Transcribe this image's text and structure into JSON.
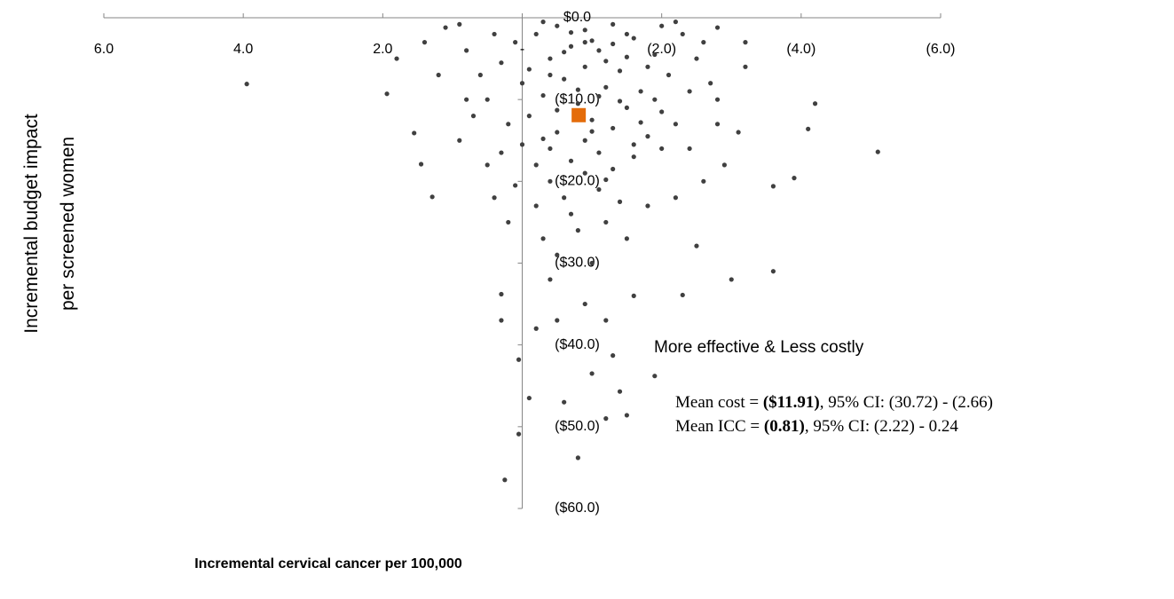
{
  "chart_data": {
    "type": "scatter",
    "x_label": "Incremental cervical cancer per 100,000",
    "y_label": [
      "Incremental budget impact",
      "per screened women"
    ],
    "xlim": [
      6,
      -6
    ],
    "xticks": [
      {
        "value": 6,
        "label": "6.0"
      },
      {
        "value": 4,
        "label": "4.0"
      },
      {
        "value": 2,
        "label": "2.0"
      },
      {
        "value": 0,
        "label": "-"
      },
      {
        "value": -2,
        "label": "(2.0)"
      },
      {
        "value": -4,
        "label": "(4.0)"
      },
      {
        "value": -6,
        "label": "(6.0)"
      }
    ],
    "ylim": [
      -60,
      0
    ],
    "yticks": [
      {
        "value": 0,
        "label": "$0.0"
      },
      {
        "value": -10,
        "label": "($10.0)"
      },
      {
        "value": -20,
        "label": "($20.0)"
      },
      {
        "value": -30,
        "label": "($30.0)"
      },
      {
        "value": -40,
        "label": "($40.0)"
      },
      {
        "value": -50,
        "label": "($50.0)"
      },
      {
        "value": -60,
        "label": "($60.0)"
      }
    ],
    "color": "#404040",
    "x": [
      3.95,
      1.94,
      1.55,
      1.45,
      1.29,
      -5.1,
      -4.2,
      -4.1,
      -3.9,
      -3.6,
      -3.6,
      -3.0,
      -2.3,
      -2.5,
      0.3,
      0.3,
      0.05,
      -0.1,
      0.05,
      0.25,
      -0.8,
      -1.2,
      -1.4,
      -1.3,
      -1.9,
      -1.5,
      -1.0,
      -0.6,
      -0.5,
      -0.2,
      -1.2,
      -0.4,
      -1.0,
      -0.3,
      -1.5,
      0.2,
      -0.7,
      -1.8,
      -2.2,
      -2.6,
      -2.9,
      -3.1,
      -2.8,
      -3.2,
      -3.2,
      -2.6,
      -2.2,
      1.1,
      1.4,
      1.8,
      1.2,
      0.8,
      0.9,
      0.5,
      0.4,
      -2.8,
      -2.4,
      -0.9,
      -1.6,
      -0.5,
      -0.9,
      -1.3,
      -0.2,
      0.1,
      -1.6,
      -0.7,
      -1.1,
      -1.9,
      -0.4,
      0.3,
      -0.9,
      -1.4,
      -2.1,
      -0.6,
      0.0,
      -1.2,
      -1.7,
      -0.3,
      0.5,
      -0.8,
      -1.5,
      -2.0,
      -0.1,
      -1.0,
      0.2,
      -1.3,
      -0.5,
      -1.8,
      -0.9,
      0.0,
      -0.4,
      -1.1,
      -1.6,
      -0.7,
      -0.2,
      -1.3,
      -0.9,
      -0.4,
      -1.1,
      -0.6,
      -1.5,
      -0.3,
      -1.0,
      -2.3,
      -2.5,
      -2.4,
      -2.2,
      -0.6,
      -1.2,
      -1.8,
      0.6,
      0.4,
      -0.8,
      -1.9,
      -0.1,
      -1.4,
      0.8,
      0.7,
      -2.7,
      -1.7,
      -0.5,
      -1.0,
      0.3,
      -2.0,
      -1.2,
      -0.2,
      -0.8,
      -1.2,
      -0.5,
      -1.4,
      0.1,
      -0.3,
      -1.6,
      -0.7,
      -1.3,
      -2.0,
      0.9,
      -2.8,
      -0.4,
      -1.1,
      -0.9,
      -1.5
    ],
    "y": [
      -8.1,
      -9.3,
      -14.1,
      -17.9,
      -21.9,
      -16.4,
      -10.5,
      -13.6,
      -19.6,
      -20.6,
      -31.0,
      -32.0,
      -33.9,
      -27.9,
      -33.8,
      -37,
      -41.8,
      -46.5,
      -50.9,
      -56.5,
      -53.8,
      -49,
      -45.7,
      -41.3,
      -43.8,
      -48.6,
      -43.5,
      -47,
      -37,
      -38,
      -37,
      -32,
      -30,
      -27,
      -27,
      -25,
      -24,
      -23,
      -22,
      -20,
      -18,
      -14,
      -10,
      -6,
      -3,
      -3,
      -0.5,
      -1.2,
      -3,
      -5,
      -7,
      -10,
      -15,
      -18,
      -22,
      -13,
      -16,
      -35,
      -34,
      -1,
      -1.5,
      -0.8,
      -2,
      -3,
      -2.5,
      -3.5,
      -4,
      -4.5,
      -5,
      -5.5,
      -6,
      -6.5,
      -7,
      -7.5,
      -8,
      -8.5,
      -9,
      -9.5,
      -10,
      -10.5,
      -11,
      -11.5,
      -12,
      -12.5,
      -13,
      -13.5,
      -14,
      -14.5,
      -15,
      -15.5,
      -16,
      -16.5,
      -17,
      -17.5,
      -18,
      -18.5,
      -19,
      -20,
      -21,
      -22,
      -2,
      -0.5,
      -2.8,
      -2,
      -5,
      -9,
      -13,
      -4.2,
      -5.3,
      -6,
      -7,
      -2,
      -8.8,
      -10,
      -6.3,
      -10.2,
      -4,
      -12,
      -8,
      -12.8,
      -11.3,
      -13.9,
      -16.5,
      -16,
      -19.8,
      -23,
      -26,
      -25,
      -29,
      -22.5,
      -20.5,
      -14.8,
      -15.5,
      -1.8,
      -3.2,
      -1,
      -0.8,
      -1.2,
      -7,
      -9.6,
      -3,
      -4.8
    ],
    "mean_point": {
      "x": -0.81,
      "y": -11.91,
      "color": "#e46c0a"
    },
    "quadrant_note": {
      "text": "More effective & Less costly",
      "color": "#00b050"
    },
    "mean_cost": [
      "Mean cost = ",
      "($11.91)",
      ", 95% CI: (30.72) - (2.66)"
    ],
    "mean_icc": [
      "Mean ICC = ",
      "(0.81)",
      ", 95% CI: (2.22) - 0.24"
    ]
  }
}
